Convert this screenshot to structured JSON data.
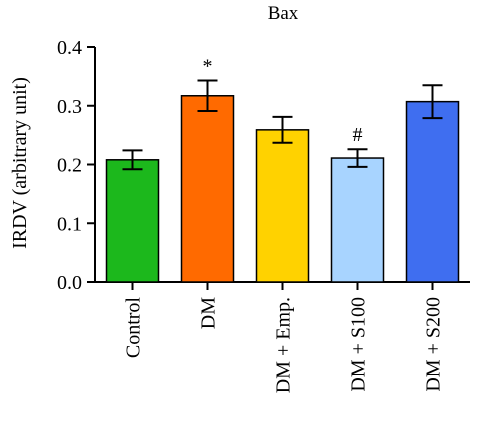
{
  "chart_data": {
    "type": "bar",
    "title": "Bax",
    "ylabel": "IRDV (arbitrary unit)",
    "xlabel": "",
    "ylim": [
      0,
      0.4
    ],
    "yticks": [
      "0.0",
      "0.1",
      "0.2",
      "0.3",
      "0.4"
    ],
    "grid": false,
    "categories": [
      "Control",
      "DM",
      "DM + Emp.",
      "DM + S100",
      "DM + S200"
    ],
    "values": [
      0.208,
      0.317,
      0.259,
      0.211,
      0.307
    ],
    "errors": [
      0.016,
      0.026,
      0.022,
      0.015,
      0.028
    ],
    "annotations": [
      "",
      "*",
      "",
      "#",
      ""
    ],
    "colors": [
      "#1cb81c",
      "#ff6a00",
      "#ffd200",
      "#a8d4ff",
      "#3f6ef0"
    ]
  }
}
